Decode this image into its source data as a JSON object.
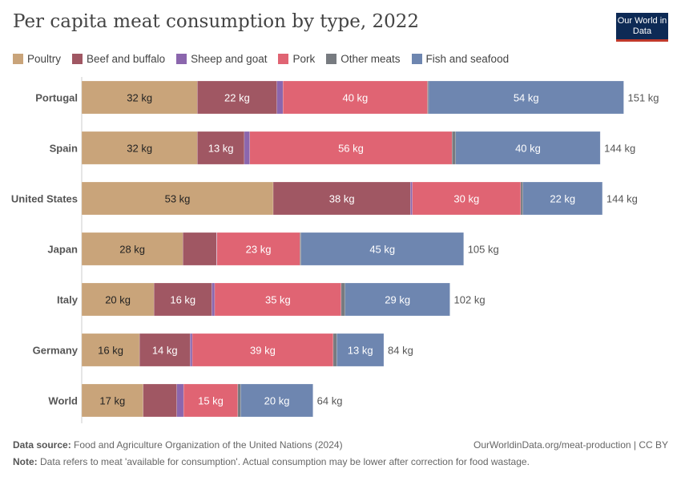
{
  "title": "Per capita meat consumption by type, 2022",
  "logo": "Our World in Data",
  "colors": {
    "Poultry": "#C9A47A",
    "Beef and buffalo": "#A05763",
    "Sheep and goat": "#8B66AD",
    "Pork": "#E06473",
    "Other meats": "#777B80",
    "Fish and seafood": "#6E86B0"
  },
  "chart_data": {
    "type": "bar",
    "orientation": "horizontal",
    "stacked": true,
    "unit": "kg",
    "categories": [
      "Portugal",
      "Spain",
      "United States",
      "Japan",
      "Italy",
      "Germany",
      "World"
    ],
    "series": [
      {
        "name": "Poultry",
        "values": [
          32,
          32,
          53,
          28,
          20,
          16,
          17
        ]
      },
      {
        "name": "Beef and buffalo",
        "values": [
          22,
          13,
          38,
          9.3,
          16,
          14,
          9.3
        ]
      },
      {
        "name": "Sheep and goat",
        "values": [
          1.7,
          1.5,
          0.5,
          0.1,
          0.8,
          0.6,
          1.9
        ]
      },
      {
        "name": "Pork",
        "values": [
          40,
          56,
          30,
          23,
          35,
          39,
          15
        ]
      },
      {
        "name": "Other meats",
        "values": [
          0.3,
          1.0,
          0.6,
          0.3,
          1.1,
          1.0,
          0.8
        ]
      },
      {
        "name": "Fish and seafood",
        "values": [
          54,
          40,
          22,
          45,
          29,
          13,
          20
        ]
      }
    ],
    "totals": [
      "151 kg",
      "144 kg",
      "144 kg",
      "105 kg",
      "102 kg",
      "84 kg",
      "64 kg"
    ],
    "legend_position": "top-left",
    "grid": false
  },
  "footer": {
    "source_label": "Data source:",
    "source": "Food and Agriculture Organization of the United Nations (2024)",
    "url": "OurWorldinData.org/meat-production | CC BY",
    "note_label": "Note:",
    "note": "Data refers to meat 'available for consumption'. Actual consumption may be lower after correction for food wastage."
  }
}
